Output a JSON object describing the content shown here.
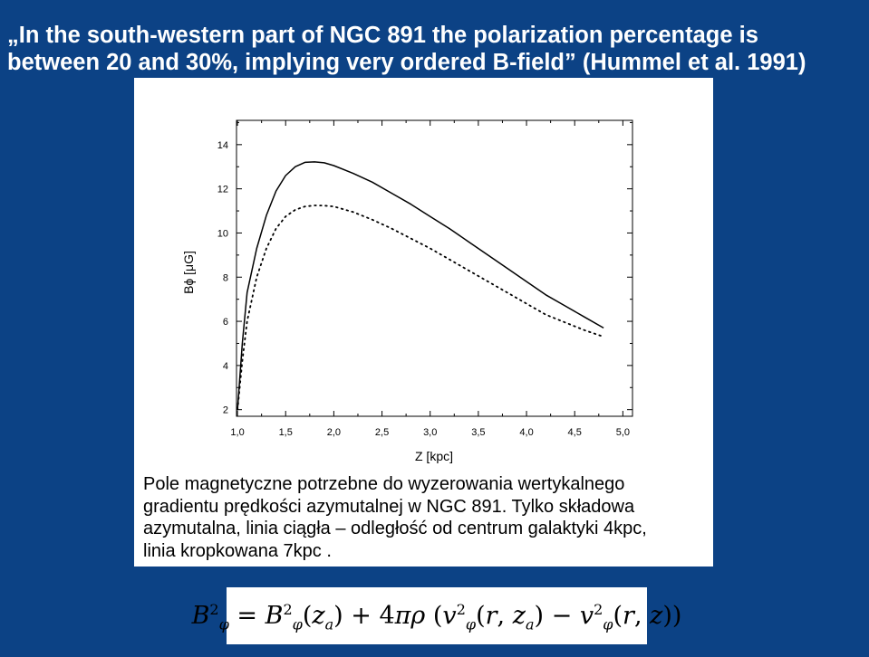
{
  "slide": {
    "title_line1": "„In the south-western part of NGC 891 the polarization percentage is",
    "title_line2": "between 20 and 30%, implying very ordered B-field” (Hummel et al. 1991)"
  },
  "caption": {
    "line1": "Pole magnetyczne potrzebne do wyzerowania wertykalnego",
    "line2": "gradientu prędkości azymutalnej w NGC 891. Tylko składowa",
    "line3": "azymutalna, linia ciągła – odległość od centrum galaktyki 4kpc,",
    "line4": "linia kropkowana 7kpc ."
  },
  "formula": {
    "text": "B²φ = B²φ(zₐ) + 4πρ (v²φ(r, zₐ) − v²φ(r, z))"
  },
  "chart_data": {
    "type": "line",
    "title": "",
    "xlabel": "Z [kpc]",
    "ylabel": "Bϕ [μG]",
    "xlim": [
      0.99,
      5.1
    ],
    "ylim": [
      1.7,
      15.1
    ],
    "x_ticks": [
      1.0,
      1.5,
      2.0,
      2.5,
      3.0,
      3.5,
      4.0,
      4.5,
      5.0
    ],
    "x_tick_labels": [
      "1,0",
      "1,5",
      "2,0",
      "2,5",
      "3,0",
      "3,5",
      "4,0",
      "4,5",
      "5,0"
    ],
    "y_ticks": [
      2,
      4,
      6,
      8,
      10,
      12,
      14
    ],
    "y_tick_labels": [
      "2",
      "4",
      "6",
      "8",
      "10",
      "12",
      "14"
    ],
    "grid": false,
    "series": [
      {
        "style": "solid",
        "x": [
          1.0,
          1.05,
          1.1,
          1.2,
          1.3,
          1.4,
          1.5,
          1.6,
          1.7,
          1.8,
          1.9,
          2.0,
          2.2,
          2.4,
          2.6,
          2.8,
          3.0,
          3.2,
          3.4,
          3.6,
          3.8,
          4.0,
          4.2,
          4.4,
          4.6,
          4.8
        ],
        "values": [
          2.0,
          5.0,
          7.3,
          9.3,
          10.8,
          11.9,
          12.6,
          13.0,
          13.2,
          13.22,
          13.18,
          13.05,
          12.7,
          12.3,
          11.8,
          11.3,
          10.75,
          10.2,
          9.6,
          9.0,
          8.4,
          7.8,
          7.2,
          6.7,
          6.2,
          5.7
        ]
      },
      {
        "style": "dotted",
        "x": [
          1.0,
          1.05,
          1.1,
          1.2,
          1.3,
          1.4,
          1.5,
          1.6,
          1.7,
          1.8,
          1.9,
          2.0,
          2.2,
          2.4,
          2.6,
          2.8,
          3.0,
          3.2,
          3.4,
          3.6,
          3.8,
          4.0,
          4.2,
          4.4,
          4.6,
          4.8
        ],
        "values": [
          2.0,
          4.2,
          6.0,
          8.0,
          9.3,
          10.2,
          10.75,
          11.05,
          11.2,
          11.25,
          11.24,
          11.2,
          10.95,
          10.6,
          10.2,
          9.75,
          9.3,
          8.8,
          8.3,
          7.8,
          7.3,
          6.8,
          6.3,
          5.95,
          5.6,
          5.3
        ]
      }
    ]
  }
}
